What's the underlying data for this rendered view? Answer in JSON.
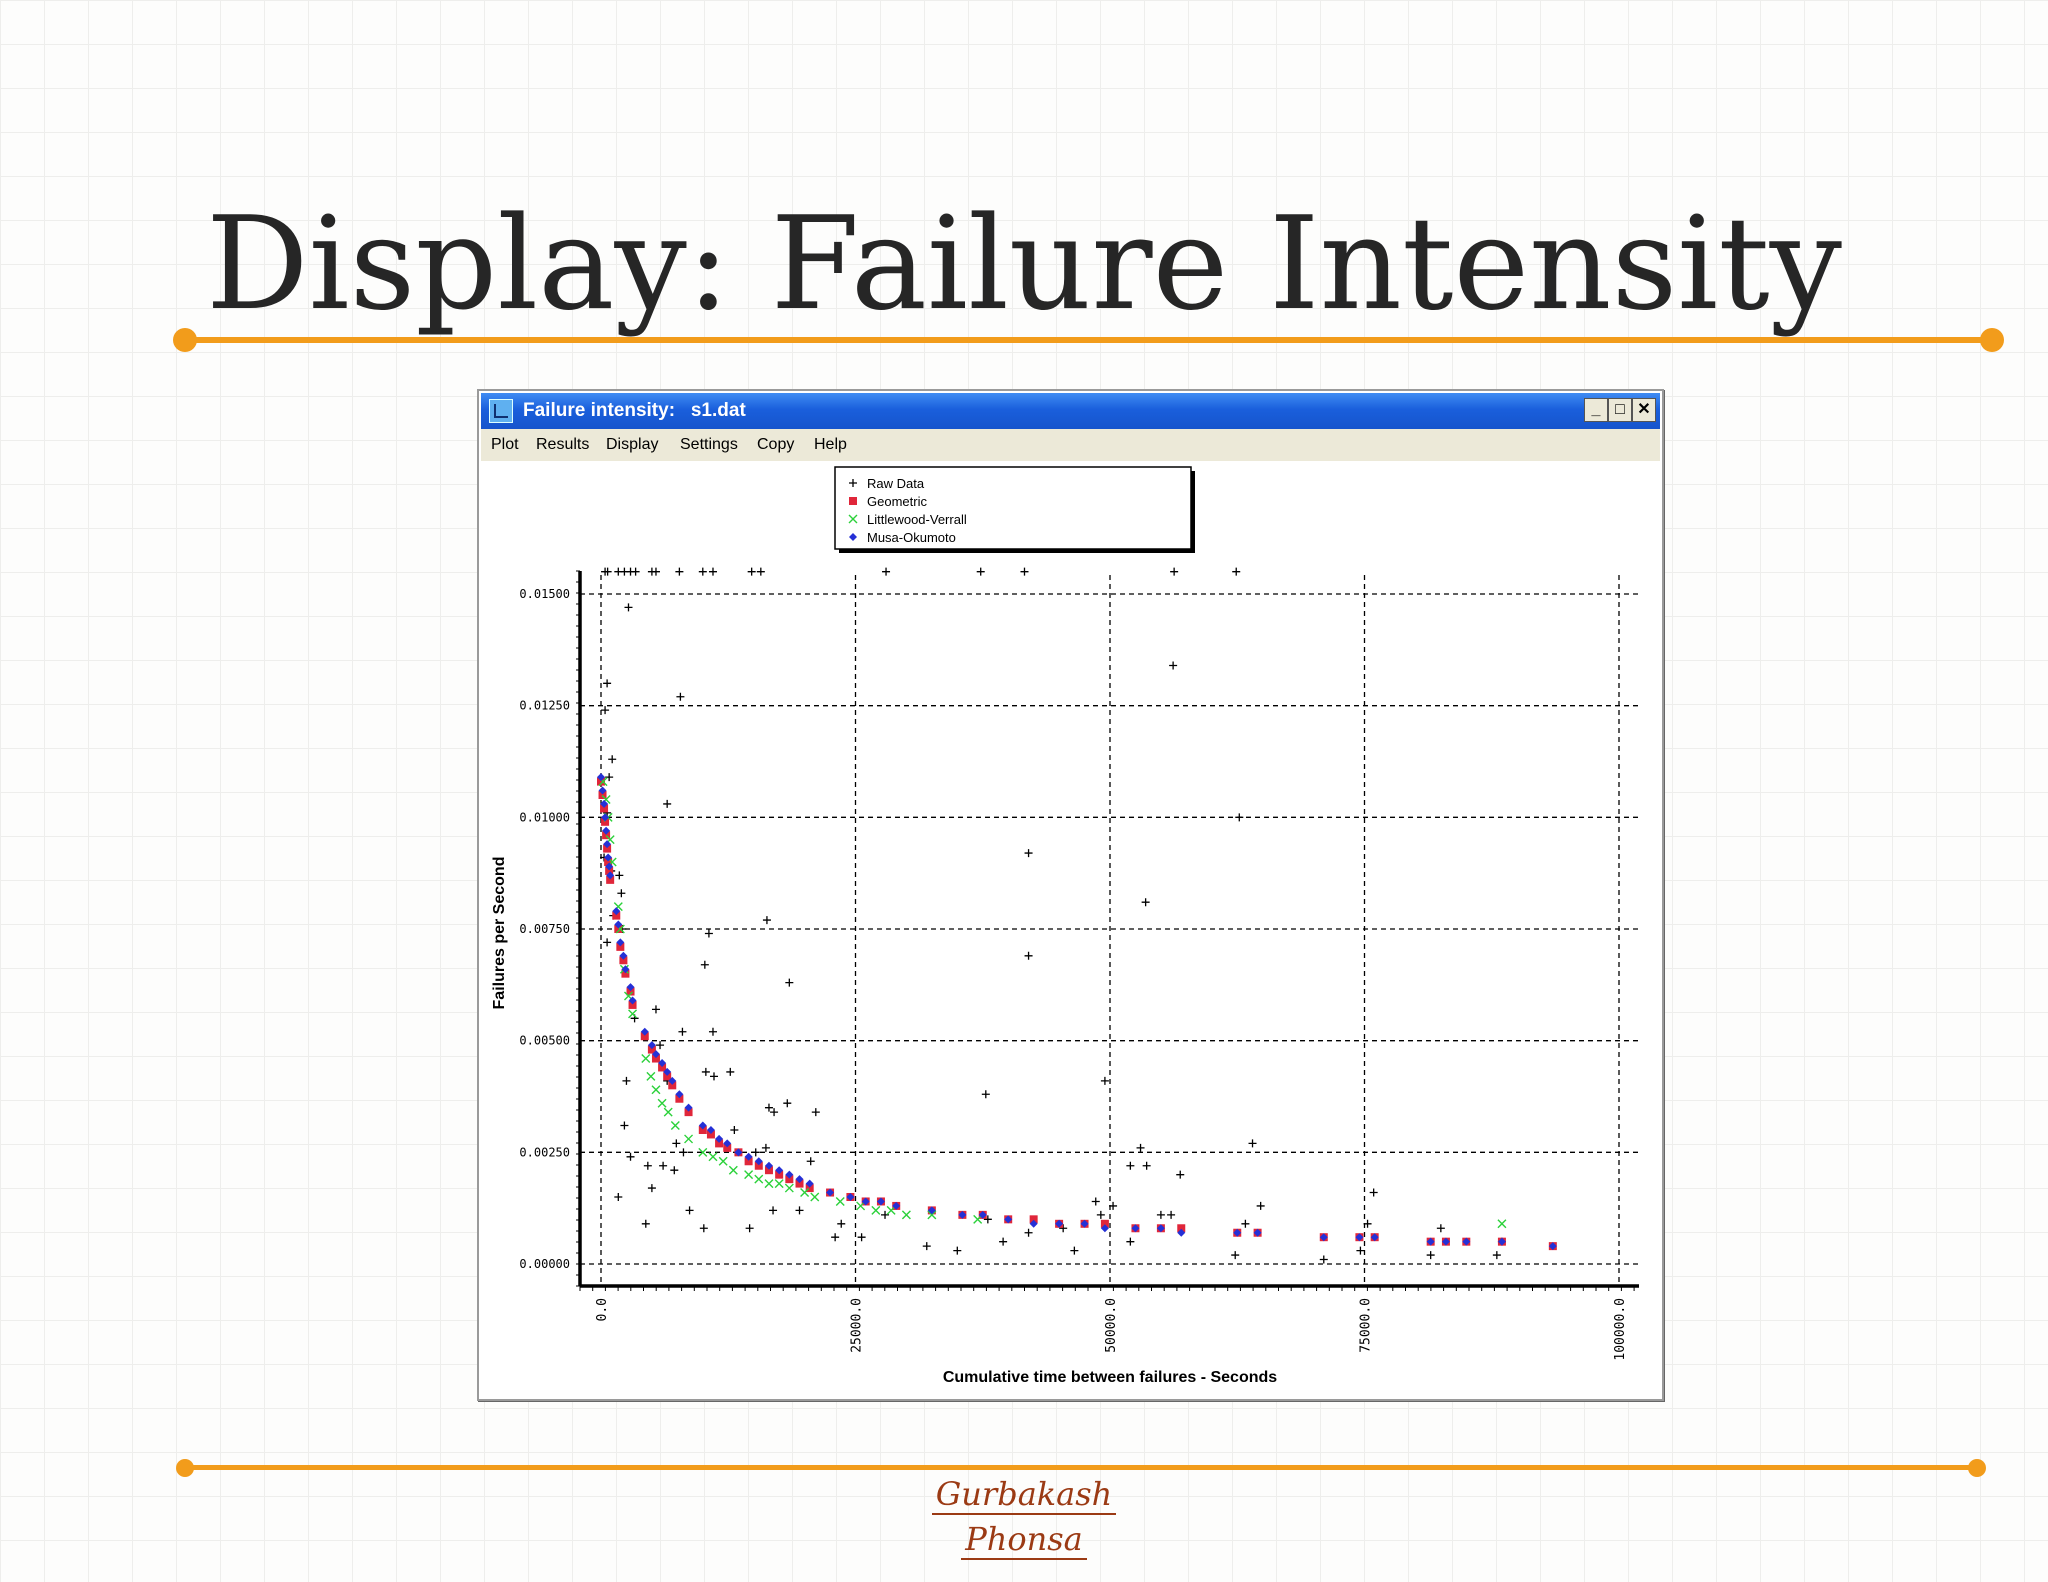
{
  "slide": {
    "title": "Display: Failure Intensity",
    "signature_line1": "Gurbakash",
    "signature_line2": "Phonsa",
    "accent_color": "#f29c1b"
  },
  "window": {
    "title": "Failure intensity:   s1.dat",
    "icon": "chart-app-icon",
    "buttons": [
      "_",
      "□",
      "✕"
    ],
    "menu": [
      "Plot",
      "Results",
      "Display",
      "Settings",
      "Copy",
      "Help"
    ]
  },
  "chart_data": {
    "type": "scatter",
    "title": "",
    "xlabel": "Cumulative time between failures - Seconds",
    "ylabel": "Failures per Second",
    "xlim": [
      0,
      100000
    ],
    "ylim": [
      0,
      0.015
    ],
    "x_ticks": [
      "0.0",
      "25000.0",
      "50000.0",
      "75000.0",
      "100000.0"
    ],
    "y_ticks": [
      "0.00000",
      "0.00250",
      "0.00500",
      "0.00750",
      "0.01000",
      "0.01250",
      "0.01500"
    ],
    "grid": true,
    "legend_position": "top-center",
    "legend": [
      "Raw Data",
      "Geometric",
      "Littlewood-Verrall",
      "Musa-Okumoto"
    ],
    "series": [
      {
        "name": "Raw Data",
        "marker": "plus",
        "color": "#000000",
        "points": [
          [
            400,
            0.0155
          ],
          [
            650,
            0.0155
          ],
          [
            1700,
            0.0155
          ],
          [
            2300,
            0.0155
          ],
          [
            2900,
            0.0155
          ],
          [
            3400,
            0.0155
          ],
          [
            5000,
            0.0155
          ],
          [
            5400,
            0.0155
          ],
          [
            7700,
            0.0155
          ],
          [
            10000,
            0.0155
          ],
          [
            11000,
            0.0155
          ],
          [
            14800,
            0.0155
          ],
          [
            15700,
            0.0155
          ],
          [
            28000,
            0.0155
          ],
          [
            37300,
            0.0155
          ],
          [
            41600,
            0.0155
          ],
          [
            56300,
            0.0155
          ],
          [
            62400,
            0.0155
          ],
          [
            2700,
            0.0147
          ],
          [
            400,
            0.0124
          ],
          [
            600,
            0.013
          ],
          [
            7800,
            0.0127
          ],
          [
            1100,
            0.0113
          ],
          [
            800,
            0.0109
          ],
          [
            600,
            0.0101
          ],
          [
            6500,
            0.0103
          ],
          [
            300,
            0.0091
          ],
          [
            1000,
            0.0088
          ],
          [
            1800,
            0.0087
          ],
          [
            2000,
            0.0083
          ],
          [
            1200,
            0.0078
          ],
          [
            600,
            0.0072
          ],
          [
            2100,
            0.0075
          ],
          [
            10600,
            0.0074
          ],
          [
            16300,
            0.0077
          ],
          [
            10200,
            0.0067
          ],
          [
            18500,
            0.0063
          ],
          [
            3300,
            0.0055
          ],
          [
            5400,
            0.0057
          ],
          [
            8000,
            0.0052
          ],
          [
            11000,
            0.0052
          ],
          [
            5800,
            0.0049
          ],
          [
            10300,
            0.0043
          ],
          [
            11100,
            0.0042
          ],
          [
            12700,
            0.0043
          ],
          [
            6500,
            0.0041
          ],
          [
            2500,
            0.0041
          ],
          [
            16500,
            0.0035
          ],
          [
            17000,
            0.0034
          ],
          [
            18300,
            0.0036
          ],
          [
            21100,
            0.0034
          ],
          [
            2300,
            0.0031
          ],
          [
            13100,
            0.003
          ],
          [
            15200,
            0.0025
          ],
          [
            7400,
            0.0027
          ],
          [
            8100,
            0.0025
          ],
          [
            2900,
            0.0024
          ],
          [
            4600,
            0.0022
          ],
          [
            6100,
            0.0022
          ],
          [
            7200,
            0.0021
          ],
          [
            16200,
            0.0026
          ],
          [
            20600,
            0.0023
          ],
          [
            1700,
            0.0015
          ],
          [
            5000,
            0.0017
          ],
          [
            8700,
            0.0012
          ],
          [
            4400,
            0.0009
          ],
          [
            10100,
            0.0008
          ],
          [
            14600,
            0.0008
          ],
          [
            16900,
            0.0012
          ],
          [
            19500,
            0.0012
          ],
          [
            23000,
            0.0006
          ],
          [
            23600,
            0.0009
          ],
          [
            25600,
            0.0006
          ],
          [
            27900,
            0.0011
          ],
          [
            32000,
            0.0004
          ],
          [
            35000,
            0.0003
          ],
          [
            38000,
            0.001
          ],
          [
            39500,
            0.0005
          ],
          [
            42000,
            0.0007
          ],
          [
            45400,
            0.0008
          ],
          [
            46500,
            0.0003
          ],
          [
            37800,
            0.0038
          ],
          [
            42000,
            0.0069
          ],
          [
            42000,
            0.0092
          ],
          [
            49500,
            0.0041
          ],
          [
            53500,
            0.0081
          ],
          [
            56200,
            0.0134
          ],
          [
            62700,
            0.01
          ],
          [
            52000,
            0.0022
          ],
          [
            53000,
            0.0026
          ],
          [
            53600,
            0.0022
          ],
          [
            55000,
            0.0011
          ],
          [
            56000,
            0.0011
          ],
          [
            56900,
            0.002
          ],
          [
            48600,
            0.0014
          ],
          [
            49100,
            0.0011
          ],
          [
            50300,
            0.0013
          ],
          [
            52000,
            0.0005
          ],
          [
            64000,
            0.0027
          ],
          [
            64800,
            0.0013
          ],
          [
            63300,
            0.0009
          ],
          [
            62300,
            0.0002
          ],
          [
            71000,
            0.0001
          ],
          [
            74600,
            0.0003
          ],
          [
            75300,
            0.0009
          ],
          [
            75900,
            0.0016
          ],
          [
            81500,
            0.0002
          ],
          [
            82500,
            0.0008
          ],
          [
            88000,
            0.0002
          ],
          [
            88500,
            0.0005
          ]
        ]
      },
      {
        "name": "Geometric",
        "marker": "square",
        "color": "#e0263a",
        "points": [
          [
            0,
            0.0108
          ],
          [
            150,
            0.0105
          ],
          [
            300,
            0.0102
          ],
          [
            400,
            0.0099
          ],
          [
            500,
            0.0096
          ],
          [
            600,
            0.0093
          ],
          [
            700,
            0.009
          ],
          [
            800,
            0.0088
          ],
          [
            900,
            0.0086
          ],
          [
            1500,
            0.0078
          ],
          [
            1700,
            0.0075
          ],
          [
            1900,
            0.0071
          ],
          [
            2200,
            0.0068
          ],
          [
            2400,
            0.0065
          ],
          [
            2900,
            0.0061
          ],
          [
            3100,
            0.0058
          ],
          [
            4300,
            0.0051
          ],
          [
            5000,
            0.0048
          ],
          [
            5400,
            0.0046
          ],
          [
            6000,
            0.0044
          ],
          [
            6500,
            0.0042
          ],
          [
            7000,
            0.004
          ],
          [
            7700,
            0.0037
          ],
          [
            8600,
            0.0034
          ],
          [
            10000,
            0.003
          ],
          [
            10800,
            0.0029
          ],
          [
            11600,
            0.0027
          ],
          [
            12400,
            0.0026
          ],
          [
            13500,
            0.0025
          ],
          [
            14500,
            0.0023
          ],
          [
            15500,
            0.0022
          ],
          [
            16500,
            0.0021
          ],
          [
            17500,
            0.002
          ],
          [
            18500,
            0.0019
          ],
          [
            19500,
            0.0018
          ],
          [
            20500,
            0.0017
          ],
          [
            22500,
            0.0016
          ],
          [
            24500,
            0.0015
          ],
          [
            26000,
            0.0014
          ],
          [
            27500,
            0.0014
          ],
          [
            29000,
            0.0013
          ],
          [
            32500,
            0.0012
          ],
          [
            35500,
            0.0011
          ],
          [
            37500,
            0.0011
          ],
          [
            40000,
            0.001
          ],
          [
            42500,
            0.001
          ],
          [
            45000,
            0.0009
          ],
          [
            47500,
            0.0009
          ],
          [
            49500,
            0.0009
          ],
          [
            52500,
            0.0008
          ],
          [
            55000,
            0.0008
          ],
          [
            57000,
            0.0008
          ],
          [
            62500,
            0.0007
          ],
          [
            64500,
            0.0007
          ],
          [
            71000,
            0.0006
          ],
          [
            74500,
            0.0006
          ],
          [
            76000,
            0.0006
          ],
          [
            81500,
            0.0005
          ],
          [
            83000,
            0.0005
          ],
          [
            85000,
            0.0005
          ],
          [
            88500,
            0.0005
          ],
          [
            93500,
            0.0004
          ]
        ]
      },
      {
        "name": "Littlewood-Verrall",
        "marker": "cross",
        "color": "#2bd13a",
        "points": [
          [
            200,
            0.0108
          ],
          [
            500,
            0.0104
          ],
          [
            700,
            0.01
          ],
          [
            900,
            0.0095
          ],
          [
            1100,
            0.009
          ],
          [
            1700,
            0.008
          ],
          [
            1900,
            0.0075
          ],
          [
            2300,
            0.0066
          ],
          [
            2700,
            0.006
          ],
          [
            3100,
            0.0056
          ],
          [
            4400,
            0.0046
          ],
          [
            4900,
            0.0042
          ],
          [
            5400,
            0.0039
          ],
          [
            6000,
            0.0036
          ],
          [
            6600,
            0.0034
          ],
          [
            7300,
            0.0031
          ],
          [
            8600,
            0.0028
          ],
          [
            10000,
            0.0025
          ],
          [
            11000,
            0.0024
          ],
          [
            12000,
            0.0023
          ],
          [
            13000,
            0.0021
          ],
          [
            14500,
            0.002
          ],
          [
            15500,
            0.0019
          ],
          [
            16500,
            0.0018
          ],
          [
            17500,
            0.0018
          ],
          [
            18500,
            0.0017
          ],
          [
            20000,
            0.0016
          ],
          [
            21000,
            0.0015
          ],
          [
            23500,
            0.0014
          ],
          [
            25500,
            0.0013
          ],
          [
            27000,
            0.0012
          ],
          [
            28500,
            0.0012
          ],
          [
            30000,
            0.0011
          ],
          [
            32500,
            0.0011
          ],
          [
            37000,
            0.001
          ],
          [
            88500,
            0.0009
          ]
        ]
      },
      {
        "name": "Musa-Okumoto",
        "marker": "diamond",
        "color": "#2530d6",
        "points": [
          [
            0,
            0.0109
          ],
          [
            150,
            0.0106
          ],
          [
            300,
            0.0103
          ],
          [
            400,
            0.01
          ],
          [
            500,
            0.0097
          ],
          [
            600,
            0.0094
          ],
          [
            700,
            0.0091
          ],
          [
            800,
            0.0089
          ],
          [
            900,
            0.0087
          ],
          [
            1500,
            0.0079
          ],
          [
            1700,
            0.0076
          ],
          [
            1900,
            0.0072
          ],
          [
            2200,
            0.0069
          ],
          [
            2400,
            0.0066
          ],
          [
            2900,
            0.0062
          ],
          [
            3100,
            0.0059
          ],
          [
            4300,
            0.0052
          ],
          [
            5000,
            0.0049
          ],
          [
            5400,
            0.0047
          ],
          [
            6000,
            0.0045
          ],
          [
            6500,
            0.0043
          ],
          [
            7000,
            0.0041
          ],
          [
            7700,
            0.0038
          ],
          [
            8600,
            0.0035
          ],
          [
            10000,
            0.0031
          ],
          [
            10800,
            0.003
          ],
          [
            11600,
            0.0028
          ],
          [
            12400,
            0.0027
          ],
          [
            13500,
            0.0025
          ],
          [
            14500,
            0.0024
          ],
          [
            15500,
            0.0023
          ],
          [
            16500,
            0.0022
          ],
          [
            17500,
            0.0021
          ],
          [
            18500,
            0.002
          ],
          [
            19500,
            0.0019
          ],
          [
            20500,
            0.0018
          ],
          [
            22500,
            0.0016
          ],
          [
            24500,
            0.0015
          ],
          [
            26000,
            0.0014
          ],
          [
            27500,
            0.0014
          ],
          [
            29000,
            0.0013
          ],
          [
            32500,
            0.0012
          ],
          [
            35500,
            0.0011
          ],
          [
            37500,
            0.0011
          ],
          [
            40000,
            0.001
          ],
          [
            42500,
            0.0009
          ],
          [
            45000,
            0.0009
          ],
          [
            47500,
            0.0009
          ],
          [
            49500,
            0.0008
          ],
          [
            52500,
            0.0008
          ],
          [
            55000,
            0.0008
          ],
          [
            57000,
            0.0007
          ],
          [
            62500,
            0.0007
          ],
          [
            64500,
            0.0007
          ],
          [
            71000,
            0.0006
          ],
          [
            74500,
            0.0006
          ],
          [
            76000,
            0.0006
          ],
          [
            81500,
            0.0005
          ],
          [
            83000,
            0.0005
          ],
          [
            85000,
            0.0005
          ],
          [
            88500,
            0.0005
          ],
          [
            93500,
            0.0004
          ]
        ]
      }
    ]
  }
}
